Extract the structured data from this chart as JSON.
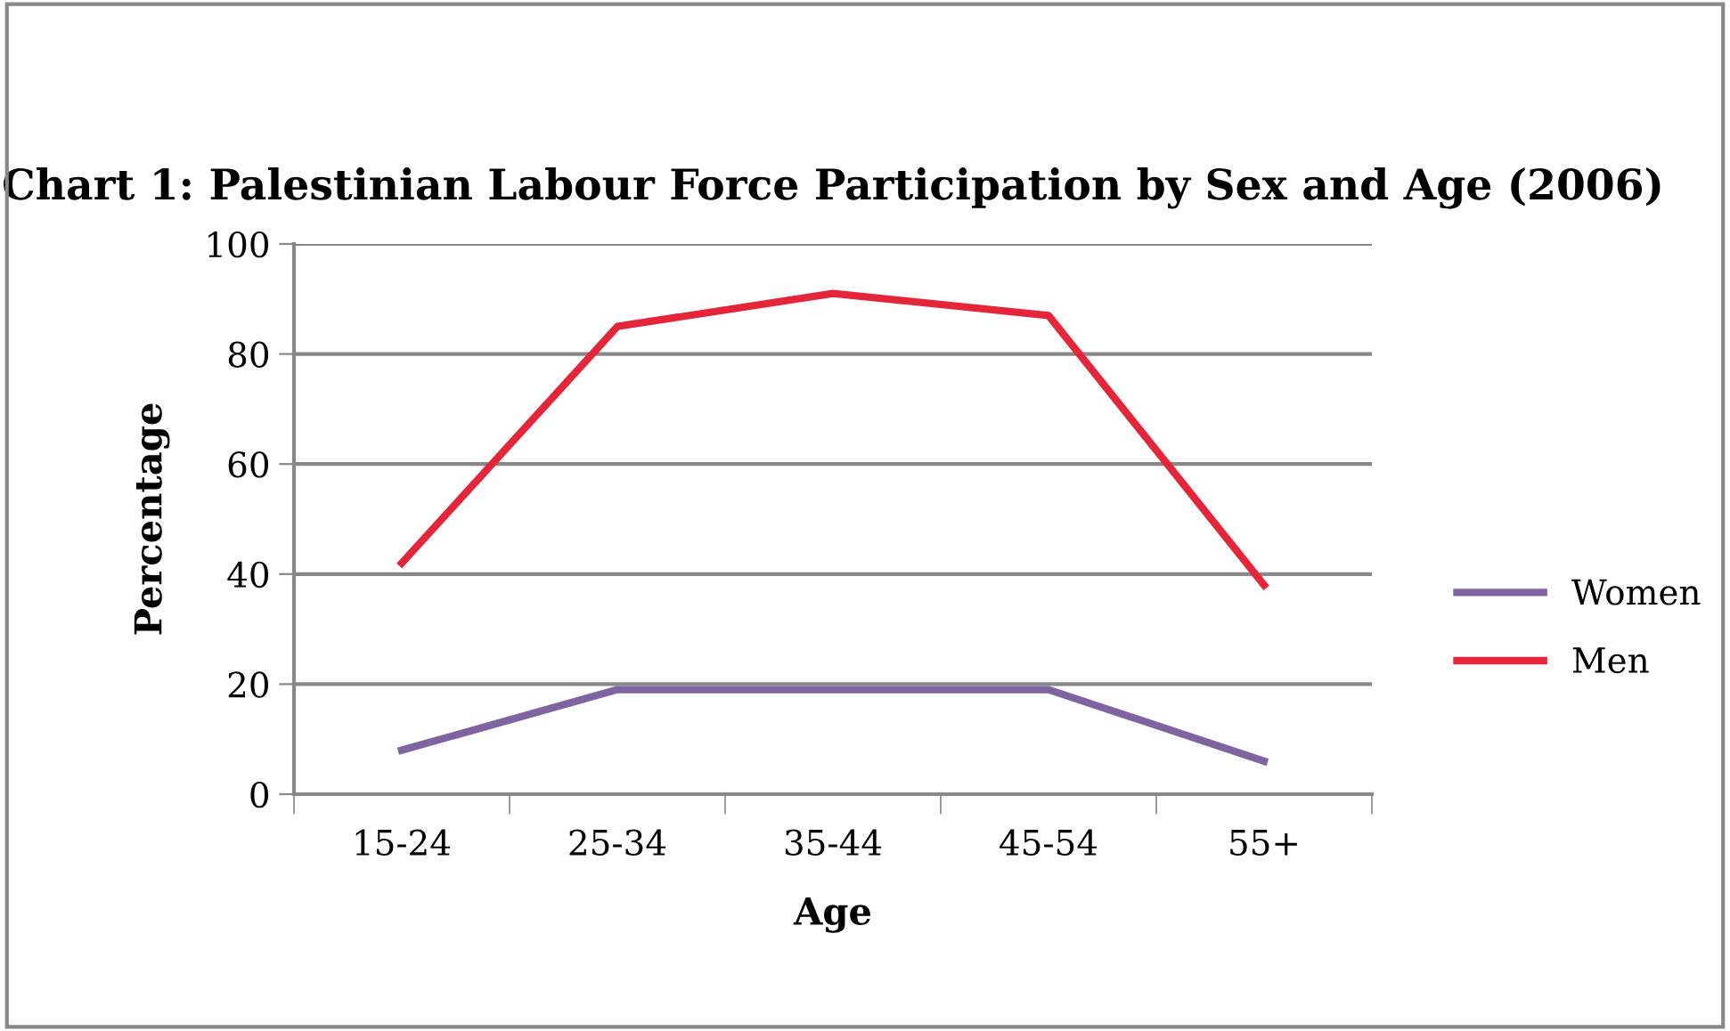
{
  "chart_data": {
    "type": "line",
    "title": "Chart 1: Palestinian Labour Force Participation by Sex and Age (2006)",
    "xlabel": "Age",
    "ylabel": "Percentage",
    "categories": [
      "15-24",
      "25-34",
      "35-44",
      "45-54",
      "55+"
    ],
    "series": [
      {
        "name": "Women",
        "color": "#8064a2",
        "values": [
          8,
          19,
          19,
          19,
          6
        ]
      },
      {
        "name": "Men",
        "color": "#e3263a",
        "values": [
          42,
          85,
          91,
          87,
          38
        ]
      }
    ],
    "ylim": [
      0,
      100
    ],
    "yticks": [
      0,
      20,
      40,
      60,
      80,
      100
    ],
    "grid": "y",
    "legend": "right",
    "marker": "none",
    "line_style": "solid"
  }
}
